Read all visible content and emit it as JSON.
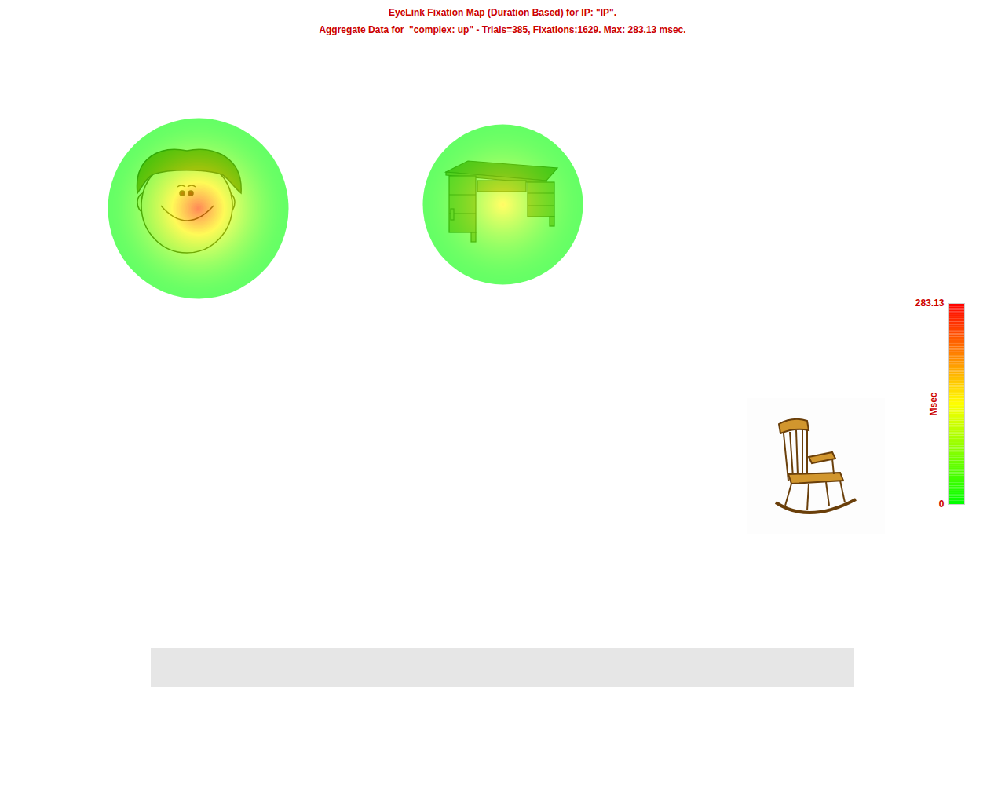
{
  "chart_data": {
    "type": "heatmap",
    "title": "EyeLink Fixation Map (Duration Based) for IP: \"IP\".",
    "subtitle": "Aggregate Data for  \"complex: up\" - Trials=385, Fixations:1629. Max: 283.13 msec.",
    "xlim": [
      0,
      1280
    ],
    "ylim": [
      0,
      1024
    ],
    "tick_labels": false,
    "hotspots": [
      {
        "x": 252,
        "y": 265,
        "value": 250,
        "radius": 115
      },
      {
        "x": 640,
        "y": 260,
        "value": 150,
        "radius": 102
      }
    ],
    "colorbar": {
      "range": [
        0,
        283.13
      ],
      "ticks": [
        0,
        283.13
      ],
      "label": "Msec",
      "colors": [
        "#00ff00",
        "#ffff00",
        "#ff0000"
      ]
    }
  }
}
